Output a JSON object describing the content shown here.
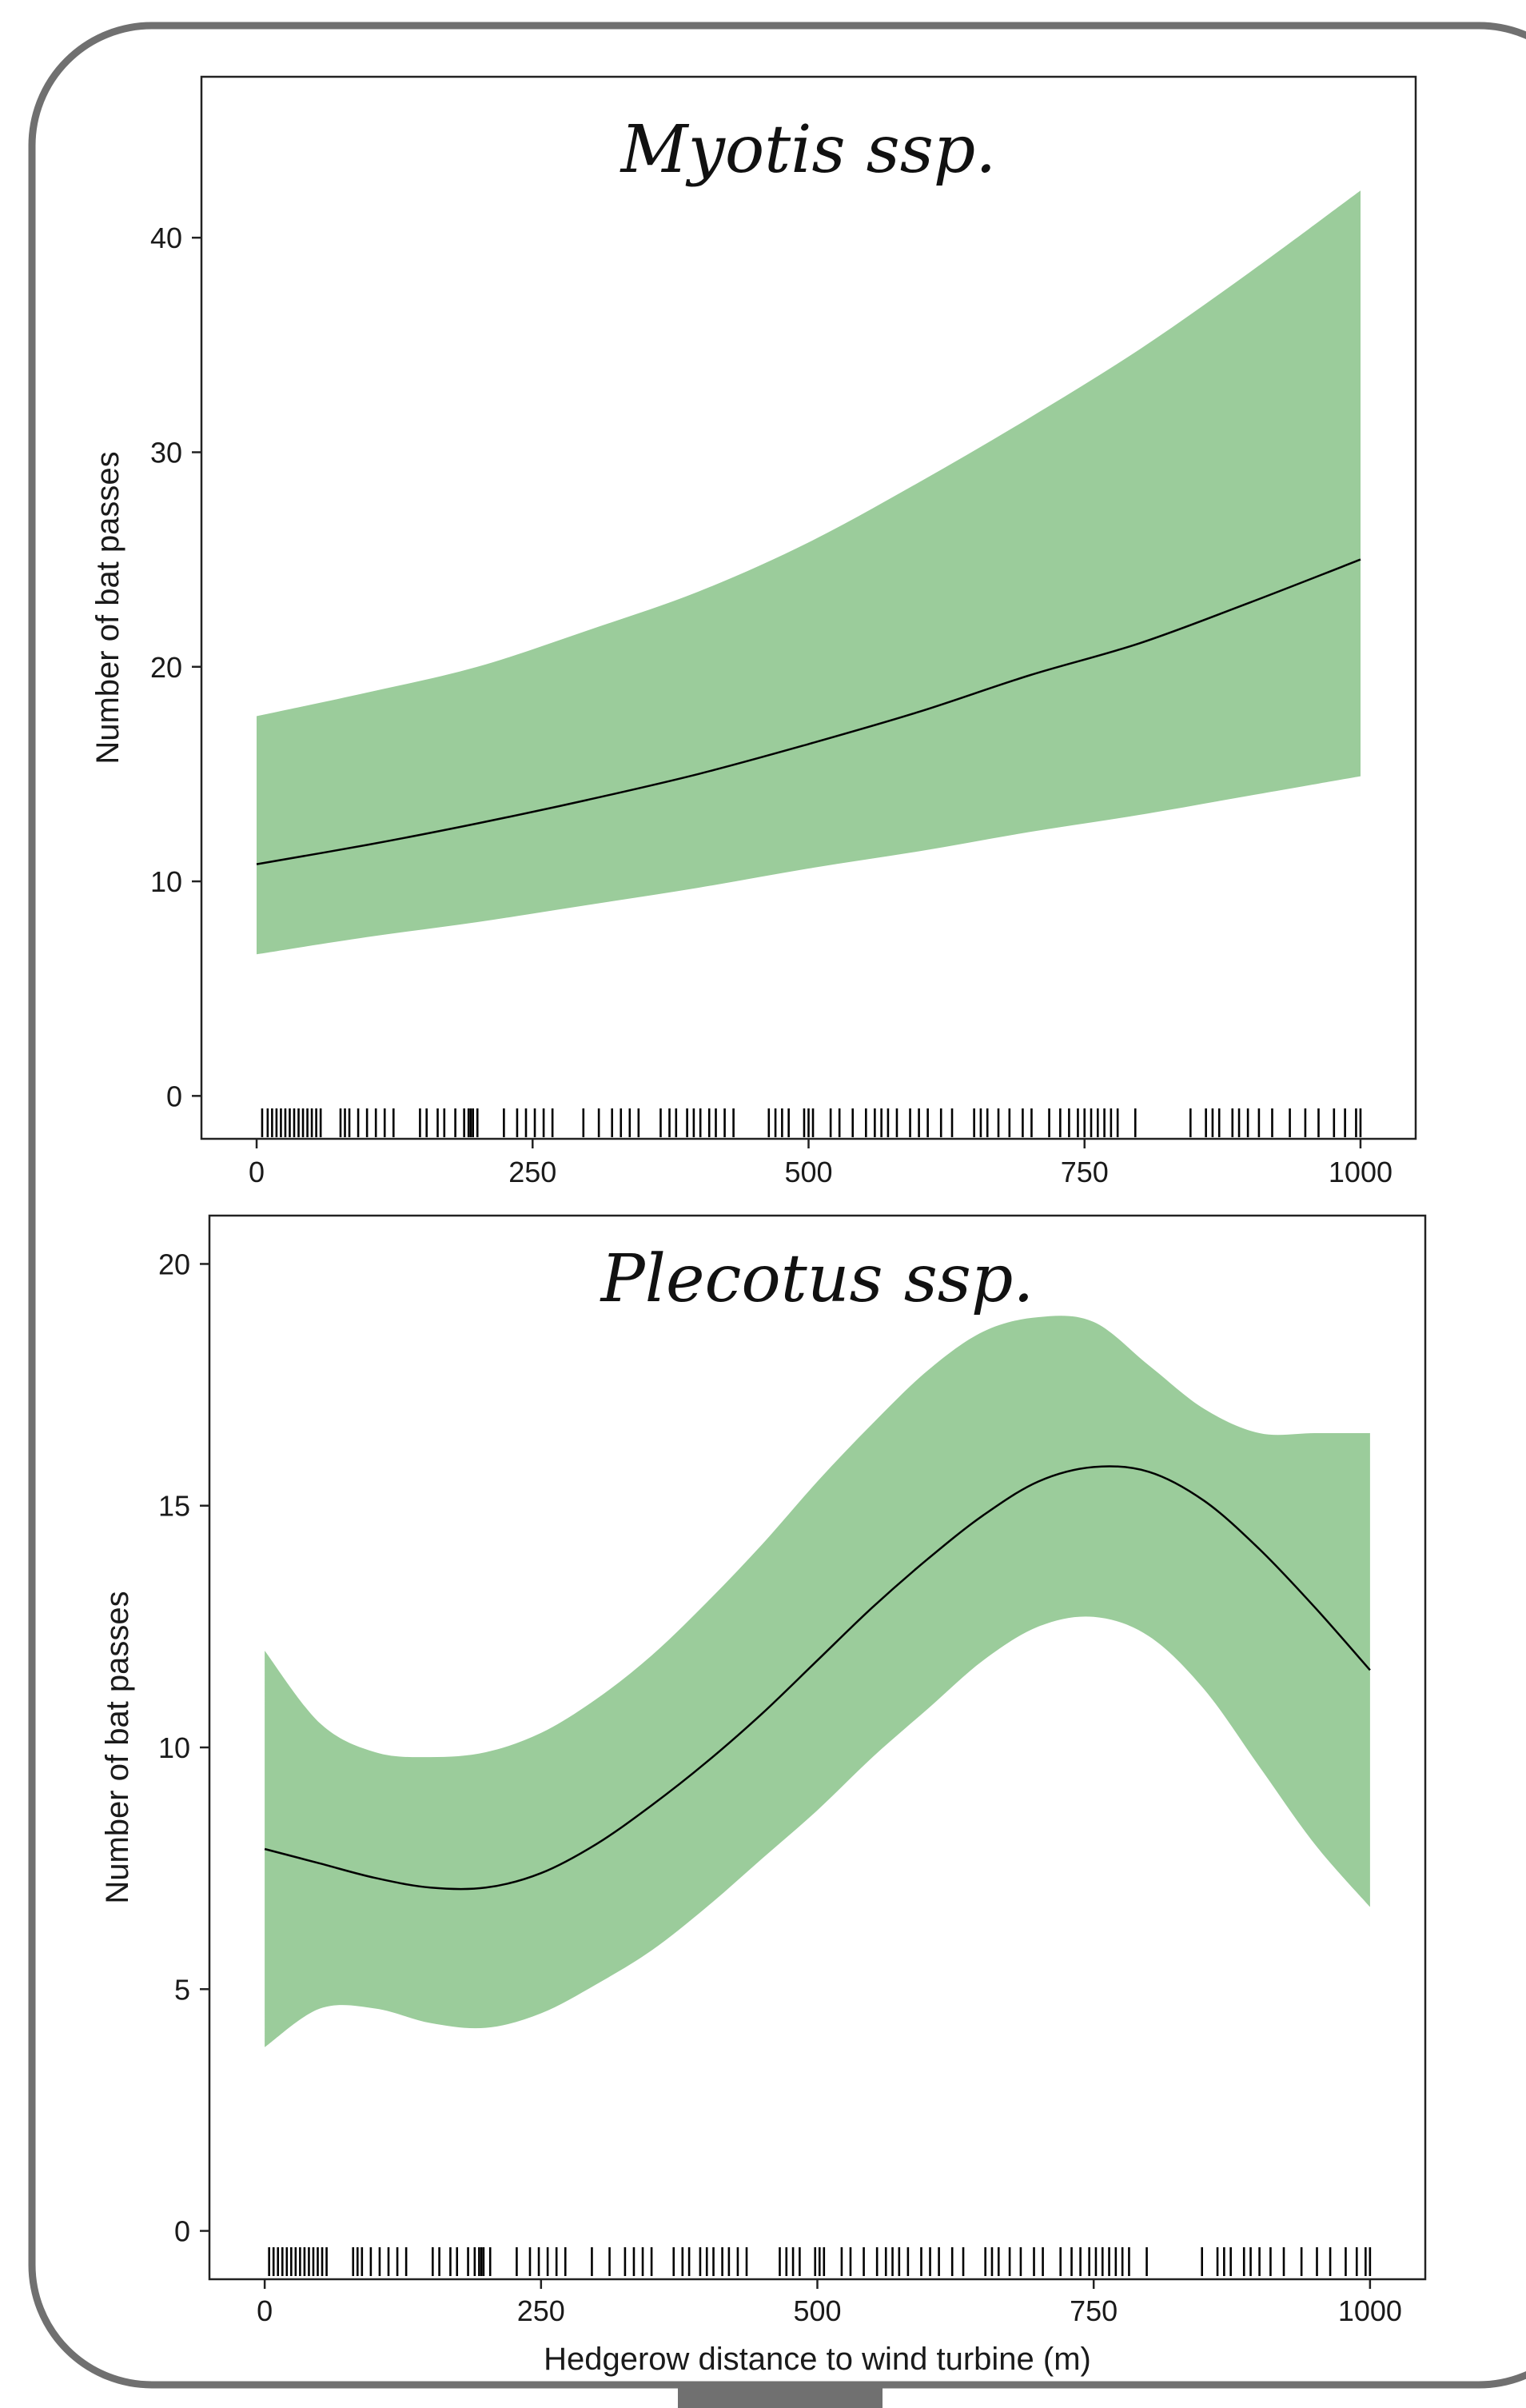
{
  "figure": {
    "frame_color": "#707070",
    "band_color": "#9bcc9b",
    "line_color": "#000000"
  },
  "chart_data": [
    {
      "type": "line",
      "title": "Myotis ssp.",
      "xlabel": "",
      "ylabel": "Number of bat passes",
      "xlim": [
        -50,
        1050
      ],
      "ylim": [
        -2,
        47.5
      ],
      "xticks": [
        0,
        250,
        500,
        750,
        1000
      ],
      "yticks": [
        0,
        10,
        20,
        30,
        40
      ],
      "grid": false,
      "series": [
        {
          "x": [
            0,
            100,
            200,
            300,
            400,
            500,
            600,
            700,
            800,
            900,
            1000
          ],
          "fit": [
            10.8,
            11.7,
            12.7,
            13.8,
            15.0,
            16.4,
            17.9,
            19.6,
            21.1,
            23.0,
            25.0
          ],
          "lower": [
            6.6,
            7.4,
            8.1,
            8.9,
            9.7,
            10.6,
            11.4,
            12.3,
            13.1,
            14.0,
            14.9
          ],
          "upper": [
            17.7,
            18.8,
            20.0,
            21.7,
            23.5,
            25.8,
            28.6,
            31.6,
            34.8,
            38.4,
            42.2
          ]
        }
      ],
      "rug": [
        5,
        10,
        14,
        18,
        22,
        26,
        30,
        34,
        38,
        42,
        46,
        50,
        54,
        58,
        76,
        80,
        84,
        92,
        100,
        108,
        116,
        124,
        148,
        154,
        164,
        170,
        180,
        188,
        192,
        194,
        196,
        200,
        224,
        236,
        244,
        252,
        260,
        268,
        296,
        310,
        322,
        330,
        338,
        346,
        366,
        374,
        380,
        390,
        396,
        402,
        410,
        416,
        424,
        432,
        464,
        470,
        476,
        482,
        496,
        500,
        504,
        520,
        528,
        540,
        552,
        560,
        566,
        572,
        580,
        592,
        600,
        608,
        620,
        630,
        650,
        656,
        662,
        672,
        682,
        694,
        702,
        718,
        728,
        736,
        744,
        750,
        756,
        762,
        768,
        774,
        780,
        796,
        846,
        860,
        866,
        872,
        884,
        890,
        898,
        908,
        920,
        936,
        950,
        962,
        976,
        986,
        996,
        1000
      ]
    },
    {
      "type": "line",
      "title": "Plecotus ssp.",
      "xlabel": "Hedgerow distance to wind turbine (m)",
      "ylabel": "Number of bat passes",
      "xlim": [
        -50,
        1050
      ],
      "ylim": [
        -1,
        21
      ],
      "xticks": [
        0,
        250,
        500,
        750,
        1000
      ],
      "yticks": [
        0,
        5,
        10,
        15,
        20
      ],
      "grid": false,
      "series": [
        {
          "x": [
            0,
            50,
            100,
            150,
            200,
            250,
            300,
            350,
            400,
            450,
            500,
            550,
            600,
            650,
            700,
            750,
            800,
            850,
            900,
            950,
            1000
          ],
          "fit": [
            7.9,
            7.6,
            7.3,
            7.1,
            7.1,
            7.4,
            8.0,
            8.8,
            9.7,
            10.7,
            11.8,
            12.9,
            13.9,
            14.8,
            15.5,
            15.8,
            15.7,
            15.1,
            14.1,
            12.9,
            11.6
          ],
          "lower": [
            3.8,
            4.6,
            4.6,
            4.3,
            4.2,
            4.5,
            5.1,
            5.8,
            6.7,
            7.7,
            8.7,
            9.8,
            10.8,
            11.8,
            12.5,
            12.7,
            12.3,
            11.2,
            9.6,
            8.0,
            6.7
          ],
          "upper": [
            12.0,
            10.5,
            9.9,
            9.8,
            9.9,
            10.3,
            11.0,
            11.9,
            13.0,
            14.2,
            15.5,
            16.7,
            17.8,
            18.6,
            18.9,
            18.8,
            17.9,
            17.0,
            16.5,
            16.5,
            16.5
          ]
        }
      ],
      "rug": [
        4,
        8,
        12,
        16,
        20,
        24,
        28,
        32,
        36,
        40,
        44,
        48,
        52,
        56,
        80,
        84,
        88,
        96,
        104,
        112,
        120,
        128,
        152,
        158,
        168,
        174,
        184,
        190,
        194,
        196,
        198,
        204,
        228,
        240,
        248,
        256,
        264,
        272,
        296,
        312,
        326,
        334,
        342,
        350,
        370,
        378,
        384,
        394,
        400,
        406,
        414,
        420,
        428,
        436,
        466,
        472,
        478,
        484,
        498,
        502,
        506,
        522,
        530,
        542,
        554,
        562,
        568,
        574,
        582,
        594,
        602,
        610,
        622,
        632,
        652,
        658,
        664,
        674,
        684,
        696,
        704,
        720,
        730,
        738,
        746,
        752,
        758,
        764,
        770,
        776,
        782,
        798,
        848,
        862,
        868,
        874,
        886,
        892,
        900,
        910,
        922,
        938,
        952,
        964,
        978,
        988,
        996,
        1000
      ]
    }
  ]
}
